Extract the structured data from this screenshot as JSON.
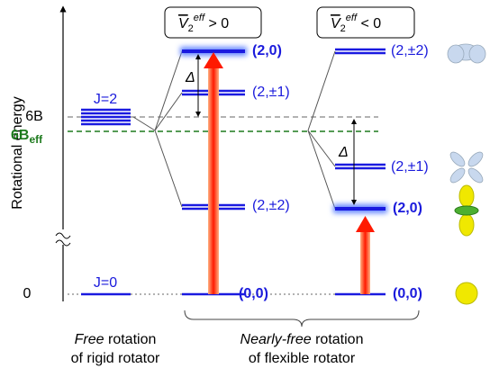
{
  "axis": {
    "label": "Rotational energy",
    "tick_6B": "6B",
    "tick_6Beff": {
      "main": "6B",
      "sub": "eff"
    },
    "tick_0": "0"
  },
  "free": {
    "j2": "J=2",
    "j0": "J=0",
    "caption": {
      "emphasis": "Free",
      "rest": " rotation",
      "line2": "of rigid rotator"
    }
  },
  "positive": {
    "box": {
      "symbol": "V",
      "sub": "2",
      "sup": "eff",
      "relation": " > 0"
    },
    "delta": "Δ",
    "levels": {
      "l20": "(2,0)",
      "l21": "(2,±1)",
      "l22": "(2,±2)",
      "l00": "(0,0)"
    }
  },
  "negative": {
    "box": {
      "symbol": "V",
      "sub": "2",
      "sup": "eff",
      "relation": " < 0"
    },
    "delta": "Δ",
    "levels": {
      "l22": "(2,±2)",
      "l21": "(2,±1)",
      "l20": "(2,0)",
      "l00": "(0,0)"
    }
  },
  "flexible_caption": {
    "emphasis": "Nearly-free",
    "rest": " rotation",
    "line2": "of flexible rotator"
  }
}
